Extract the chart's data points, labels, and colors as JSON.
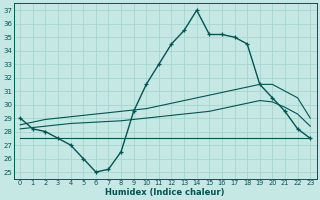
{
  "xlabel": "Humidex (Indice chaleur)",
  "bg_color": "#c5e8e4",
  "grid_color": "#a8d5cf",
  "line_color": "#005555",
  "xlim": [
    -0.5,
    23.5
  ],
  "ylim": [
    24.5,
    37.5
  ],
  "yticks": [
    25,
    26,
    27,
    28,
    29,
    30,
    31,
    32,
    33,
    34,
    35,
    36,
    37
  ],
  "xticks": [
    0,
    1,
    2,
    3,
    4,
    5,
    6,
    7,
    8,
    9,
    10,
    11,
    12,
    13,
    14,
    15,
    16,
    17,
    18,
    19,
    20,
    21,
    22,
    23
  ],
  "hours": [
    0,
    1,
    2,
    3,
    4,
    5,
    6,
    7,
    8,
    9,
    10,
    11,
    12,
    13,
    14,
    15,
    16,
    17,
    18,
    19,
    20,
    21,
    22,
    23
  ],
  "humidex_main": [
    29.0,
    28.2,
    28.0,
    27.5,
    27.0,
    26.0,
    25.0,
    25.2,
    26.5,
    29.5,
    31.5,
    33.0,
    34.5,
    35.5,
    37.0,
    35.2,
    35.2,
    35.0,
    34.5,
    31.5,
    30.5,
    29.5,
    28.2,
    27.5
  ],
  "humidex_flat": [
    27.5,
    27.5,
    27.5,
    27.5,
    27.5,
    27.5,
    27.5,
    27.5,
    27.5,
    27.5,
    27.5,
    27.5,
    27.5,
    27.5,
    27.5,
    27.5,
    27.5,
    27.5,
    27.5,
    27.5,
    27.5,
    27.5,
    27.5,
    27.5
  ],
  "humidex_trend1": [
    28.5,
    28.7,
    28.9,
    29.0,
    29.1,
    29.2,
    29.3,
    29.4,
    29.5,
    29.6,
    29.7,
    29.9,
    30.1,
    30.3,
    30.5,
    30.7,
    30.9,
    31.1,
    31.3,
    31.5,
    31.5,
    31.0,
    30.5,
    29.0
  ],
  "humidex_trend2": [
    28.2,
    28.3,
    28.4,
    28.5,
    28.6,
    28.65,
    28.7,
    28.75,
    28.8,
    28.9,
    29.0,
    29.1,
    29.2,
    29.3,
    29.4,
    29.5,
    29.7,
    29.9,
    30.1,
    30.3,
    30.2,
    29.8,
    29.3,
    28.4
  ]
}
